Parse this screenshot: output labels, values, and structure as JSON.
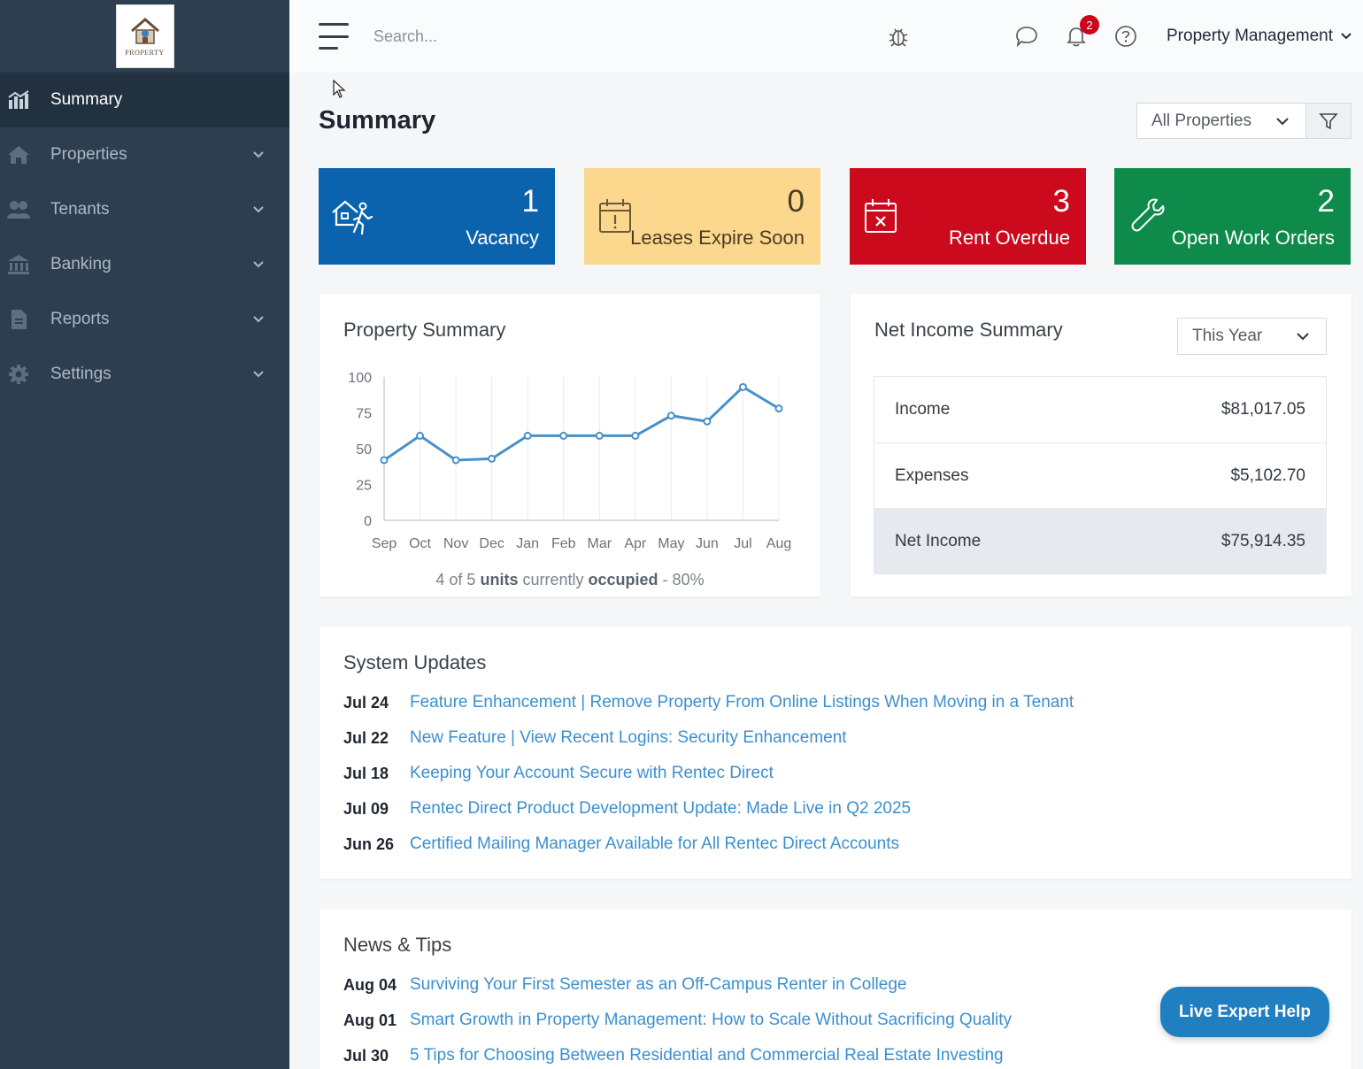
{
  "logo": {
    "text": "PROPERTY"
  },
  "sidebar": {
    "items": [
      {
        "label": "Summary",
        "icon": "chart-bar-icon"
      },
      {
        "label": "Properties",
        "icon": "home-icon"
      },
      {
        "label": "Tenants",
        "icon": "users-icon"
      },
      {
        "label": "Banking",
        "icon": "bank-icon"
      },
      {
        "label": "Reports",
        "icon": "document-icon"
      },
      {
        "label": "Settings",
        "icon": "gear-icon"
      }
    ]
  },
  "topbar": {
    "search_placeholder": "Search...",
    "notification_count": "2",
    "user_menu_label": "Property Management"
  },
  "page": {
    "title": "Summary",
    "property_filter": "All Properties"
  },
  "stats": [
    {
      "value": "1",
      "label": "Vacancy",
      "color": "#0b63ae"
    },
    {
      "value": "0",
      "label": "Leases Expire Soon",
      "color": "#fcd88f"
    },
    {
      "value": "3",
      "label": "Rent Overdue",
      "color": "#cc0a1d"
    },
    {
      "value": "2",
      "label": "Open Work Orders",
      "color": "#0e8a4a"
    }
  ],
  "property_summary": {
    "title": "Property Summary",
    "occupancy_prefix": "4 of 5",
    "occupancy_units": "units",
    "occupancy_mid": "currently",
    "occupancy_word": "occupied",
    "occupancy_suffix": "- 80%"
  },
  "chart_data": {
    "type": "line",
    "categories": [
      "Sep",
      "Oct",
      "Nov",
      "Dec",
      "Jan",
      "Feb",
      "Mar",
      "Apr",
      "May",
      "Jun",
      "Jul",
      "Aug"
    ],
    "values": [
      42,
      59,
      42,
      43,
      59,
      59,
      59,
      59,
      73,
      69,
      93,
      78
    ],
    "yticks": [
      0,
      25,
      50,
      75,
      100
    ],
    "ylim": [
      0,
      100
    ],
    "color": "#4a90c8"
  },
  "net_income": {
    "title": "Net Income Summary",
    "period": "This Year",
    "rows": [
      {
        "label": "Income",
        "value": "$81,017.05"
      },
      {
        "label": "Expenses",
        "value": "$5,102.70"
      },
      {
        "label": "Net Income",
        "value": "$75,914.35"
      }
    ]
  },
  "system_updates": {
    "title": "System Updates",
    "items": [
      {
        "date": "Jul 24",
        "text": "Feature Enhancement | Remove Property From Online Listings When Moving in a Tenant"
      },
      {
        "date": "Jul 22",
        "text": "New Feature | View Recent Logins: Security Enhancement"
      },
      {
        "date": "Jul 18",
        "text": "Keeping Your Account Secure with Rentec Direct"
      },
      {
        "date": "Jul 09",
        "text": "Rentec Direct Product Development Update: Made Live in Q2 2025"
      },
      {
        "date": "Jun 26",
        "text": "Certified Mailing Manager Available for All Rentec Direct Accounts"
      }
    ]
  },
  "news": {
    "title": "News & Tips",
    "items": [
      {
        "date": "Aug 04",
        "text": "Surviving Your First Semester as an Off-Campus Renter in College"
      },
      {
        "date": "Aug 01",
        "text": "Smart Growth in Property Management: How to Scale Without Sacrificing Quality"
      },
      {
        "date": "Jul 30",
        "text": "5 Tips for Choosing Between Residential and Commercial Real Estate Investing"
      }
    ]
  },
  "help_button": "Live Expert Help"
}
